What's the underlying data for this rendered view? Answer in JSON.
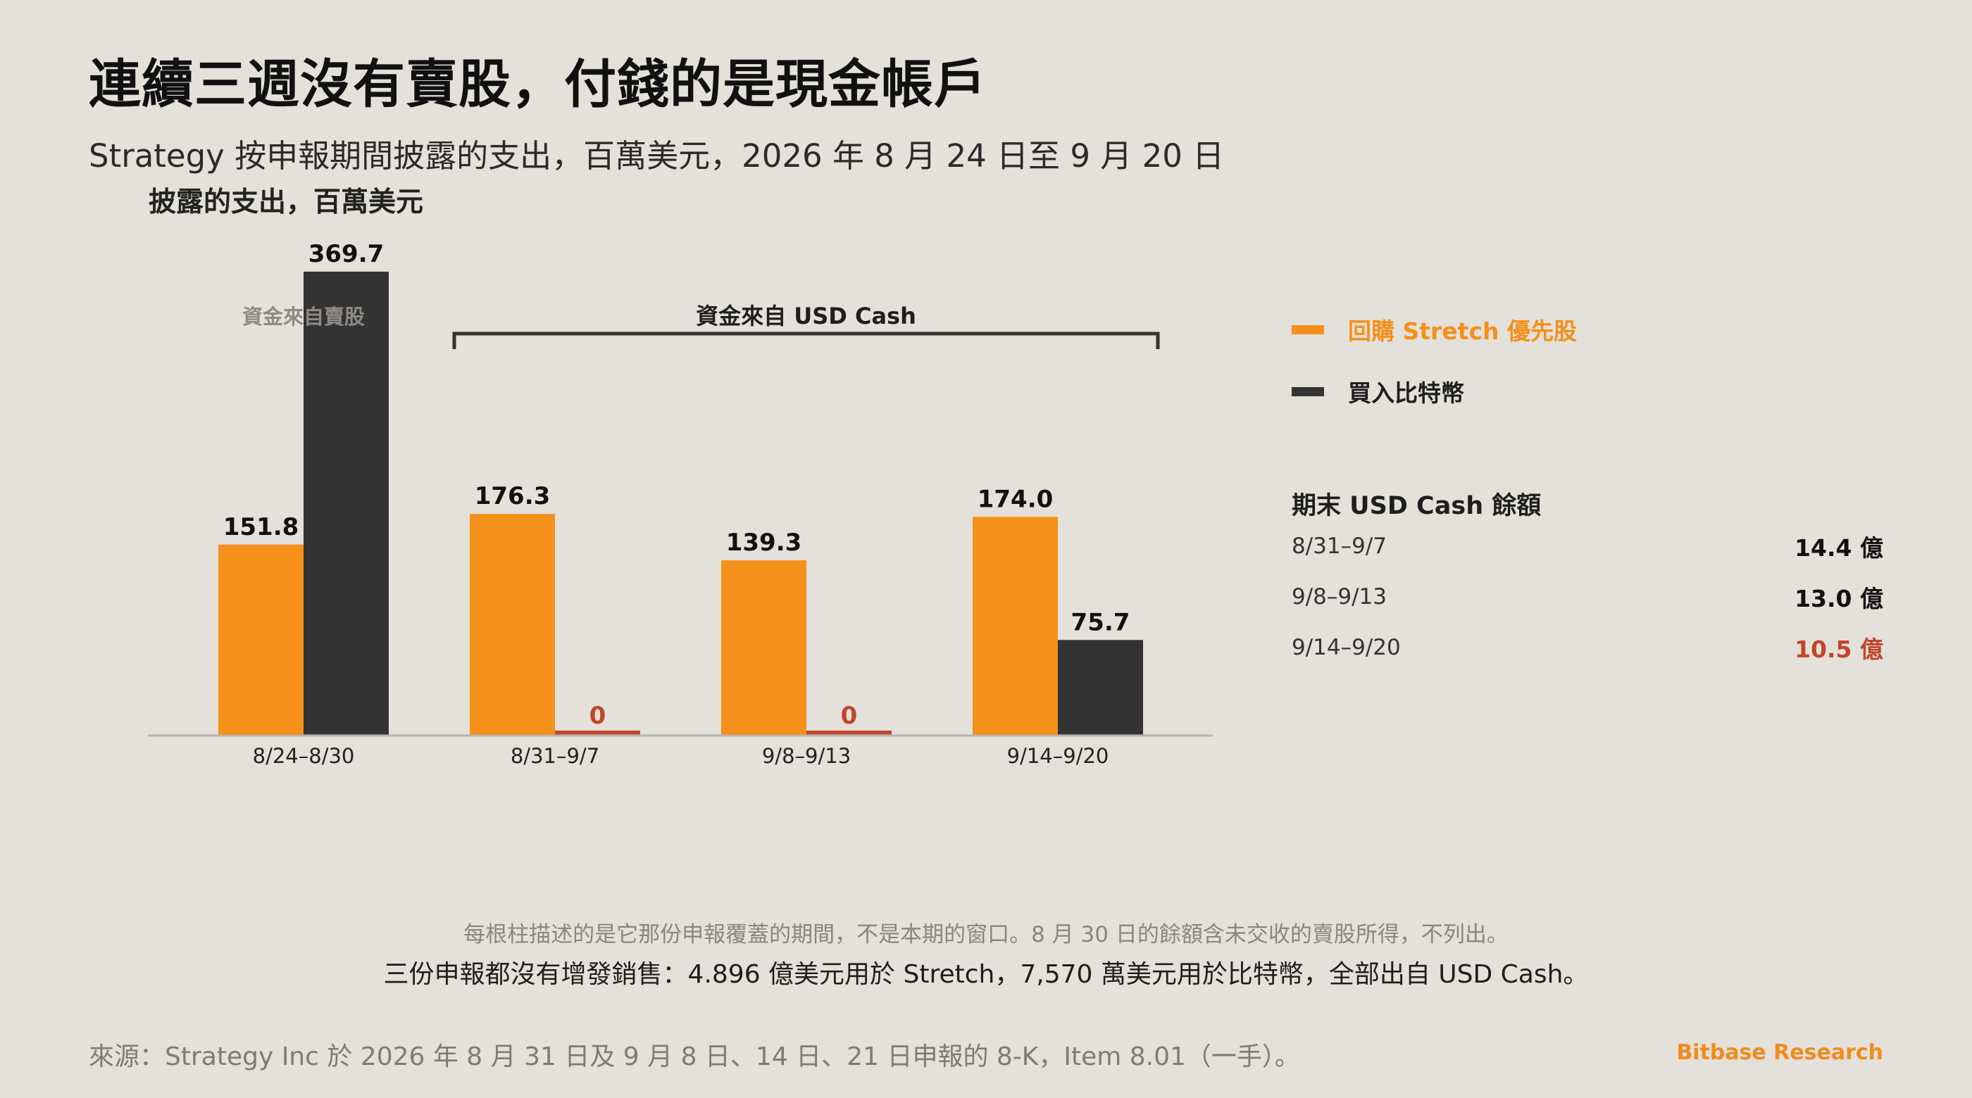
{
  "title": "連續三週沒有賣股，付錢的是現金帳戶",
  "subtitle": "Strategy 按申報期間披露的支出，百萬美元，2026 年 8 月 24 日至 9 月 20 日",
  "unit_label": "披露的支出，百萬美元",
  "colors": {
    "stretch": "#f5901a",
    "bitcoin": "#333333",
    "zero": "#c0452b",
    "bracket": "#333333",
    "group_gray": "#8e8984",
    "red_value": "#c0452b",
    "background": "#e4e0da"
  },
  "chart_data": {
    "type": "bar",
    "categories": [
      "8/24–8/30",
      "8/31–9/7",
      "9/8–9/13",
      "9/14–9/20"
    ],
    "series": [
      {
        "name": "回購 Stretch 優先股",
        "values": [
          151.8,
          176.3,
          139.3,
          174.0
        ],
        "labels": [
          "151.8",
          "176.3",
          "139.3",
          "174.0"
        ]
      },
      {
        "name": "買入比特幣",
        "values": [
          369.7,
          0,
          0,
          75.7
        ],
        "labels": [
          "369.7",
          "0",
          "0",
          "75.7"
        ]
      }
    ],
    "ylim": [
      0,
      400
    ],
    "grid": false,
    "legend": "right",
    "group_annotations": [
      {
        "label": "資金來自賣股",
        "categories": [
          0
        ],
        "bracket": false
      },
      {
        "label": "資金來自 USD Cash",
        "categories": [
          1,
          2,
          3
        ],
        "bracket": true
      }
    ]
  },
  "cash_panel": {
    "title": "期末 USD Cash 餘額",
    "rows": [
      {
        "period": "8/31–9/7",
        "value": "14.4 億",
        "highlight": false
      },
      {
        "period": "9/8–9/13",
        "value": "13.0 億",
        "highlight": false
      },
      {
        "period": "9/14–9/20",
        "value": "10.5 億",
        "highlight": true
      }
    ]
  },
  "note1": "每根柱描述的是它那份申報覆蓋的期間，不是本期的窗口。8 月 30 日的餘額含未交收的賣股所得，不列出。",
  "note2": "三份申報都沒有增發銷售：4.896 億美元用於 Stretch，7,570 萬美元用於比特幣，全部出自 USD Cash。",
  "source": "來源：Strategy Inc 於 2026 年 8 月 31 日及 9 月 8 日、14 日、21 日申報的 8-K，Item 8.01（一手）。",
  "brand": "Bitbase Research"
}
